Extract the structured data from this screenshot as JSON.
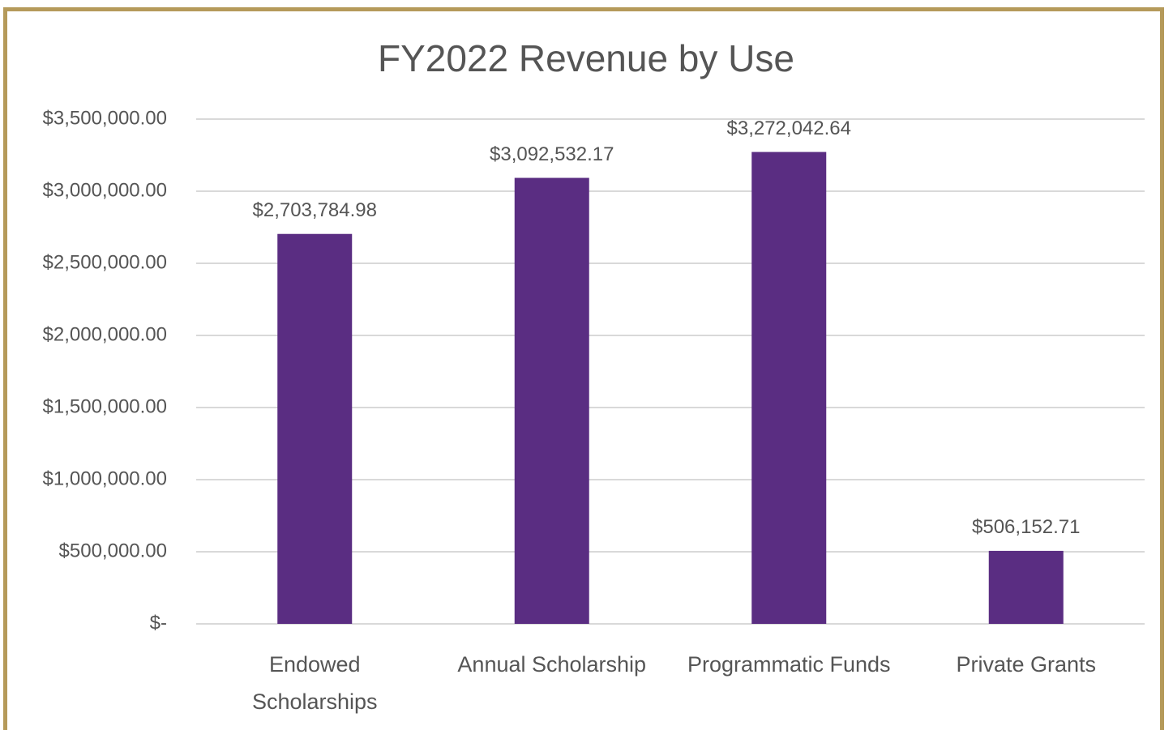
{
  "chart_data": {
    "type": "bar",
    "title": "FY2022 Revenue by Use",
    "categories": [
      "Endowed Scholarships",
      "Annual Scholarship",
      "Programmatic Funds",
      "Private Grants"
    ],
    "values": [
      2703784.98,
      3092532.17,
      3272042.64,
      506152.71
    ],
    "value_labels": [
      "$2,703,784.98",
      "$3,092,532.17",
      "$3,272,042.64",
      "$506,152.71"
    ],
    "color": "#5a2d82",
    "ylim": [
      0,
      3500000
    ],
    "yticks": [
      {
        "value": 0,
        "label": "$-"
      },
      {
        "value": 500000,
        "label": "$500,000.00"
      },
      {
        "value": 1000000,
        "label": "$1,000,000.00"
      },
      {
        "value": 1500000,
        "label": "$1,500,000.00"
      },
      {
        "value": 2000000,
        "label": "$2,000,000.00"
      },
      {
        "value": 2500000,
        "label": "$2,500,000.00"
      },
      {
        "value": 3000000,
        "label": "$3,000,000.00"
      },
      {
        "value": 3500000,
        "label": "$3,500,000.00"
      }
    ],
    "grid": true
  }
}
